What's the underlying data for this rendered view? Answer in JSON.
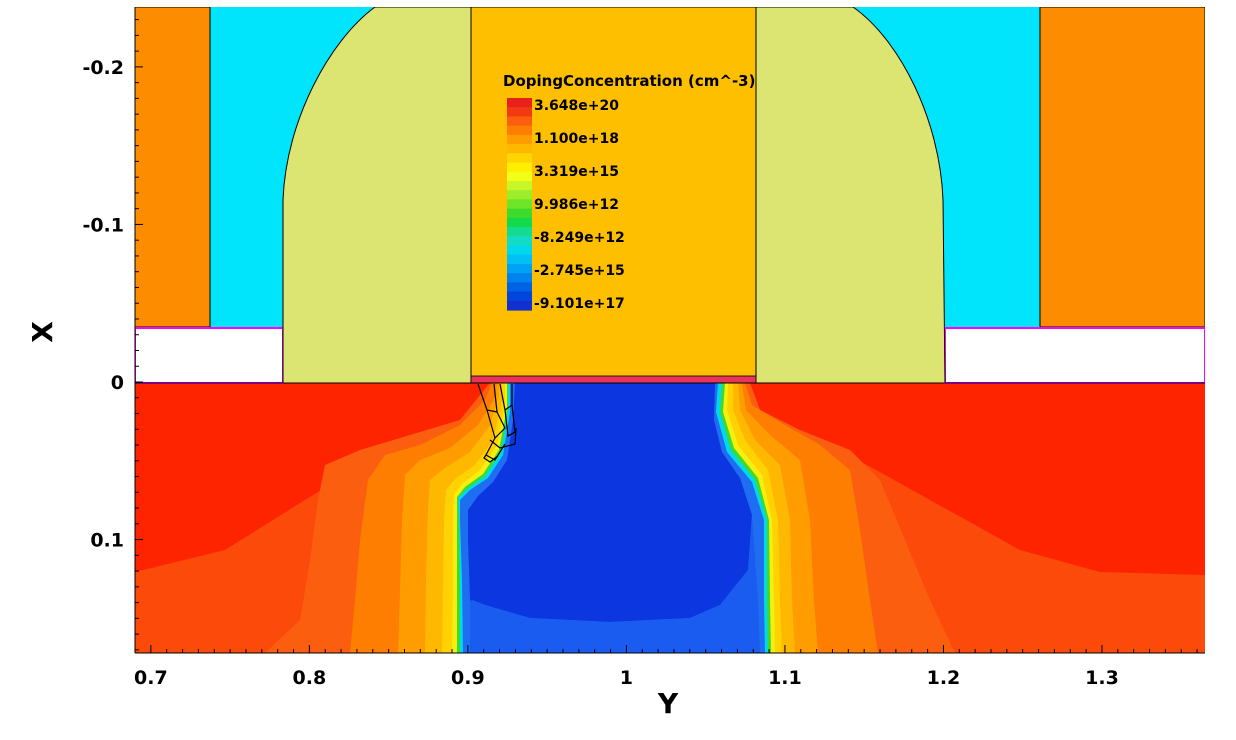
{
  "chart_data": {
    "type": "heatmap",
    "title": "",
    "xlabel": "Y",
    "ylabel": "X",
    "xlim": [
      0.69,
      1.365
    ],
    "ylim": [
      0.172,
      -0.238
    ],
    "xticks": [
      {
        "value": 0.7,
        "label": "0.7"
      },
      {
        "value": 0.8,
        "label": "0.8"
      },
      {
        "value": 0.9,
        "label": "0.9"
      },
      {
        "value": 1.0,
        "label": "1"
      },
      {
        "value": 1.1,
        "label": "1.1"
      },
      {
        "value": 1.2,
        "label": "1.2"
      },
      {
        "value": 1.3,
        "label": "1.3"
      }
    ],
    "yticks": [
      {
        "value": -0.2,
        "label": "-0.2"
      },
      {
        "value": -0.1,
        "label": "-0.1"
      },
      {
        "value": 0.0,
        "label": "0"
      },
      {
        "value": 0.1,
        "label": "0.1"
      }
    ],
    "legend": {
      "title": "DopingConcentration (cm^-3)",
      "placement": "top-center",
      "labels": [
        "3.648e+20",
        "1.100e+18",
        "3.319e+15",
        "9.986e+12",
        "-8.249e+12",
        "-2.745e+15",
        "-9.101e+17"
      ],
      "colors": [
        "#e8221b",
        "#f23a12",
        "#fb5e0f",
        "#fd7e00",
        "#fe9c00",
        "#feb800",
        "#ffd500",
        "#ffee00",
        "#f4ff17",
        "#c8f728",
        "#9ded2a",
        "#6fe52a",
        "#3fdb2a",
        "#14d94a",
        "#14db92",
        "#13dcc6",
        "#00d8ec",
        "#00c0f5",
        "#00a2f5",
        "#0082ef",
        "#0063e6",
        "#0046dd",
        "#1030cf"
      ]
    },
    "regions": [
      {
        "name": "contact-left",
        "color": "#fe8c00"
      },
      {
        "name": "contact-right",
        "color": "#fe8c00"
      },
      {
        "name": "liner-left",
        "color": "#00e4fc"
      },
      {
        "name": "liner-right",
        "color": "#00e4fc"
      },
      {
        "name": "spacer-left",
        "color": "#dce472"
      },
      {
        "name": "spacer-right",
        "color": "#dce472"
      },
      {
        "name": "gate",
        "color": "#fdbf00"
      },
      {
        "name": "gate-oxide",
        "color": "#e8335a"
      },
      {
        "name": "source-drain",
        "color": "#ff2400"
      },
      {
        "name": "channel",
        "color": "#0b36e0"
      }
    ]
  }
}
